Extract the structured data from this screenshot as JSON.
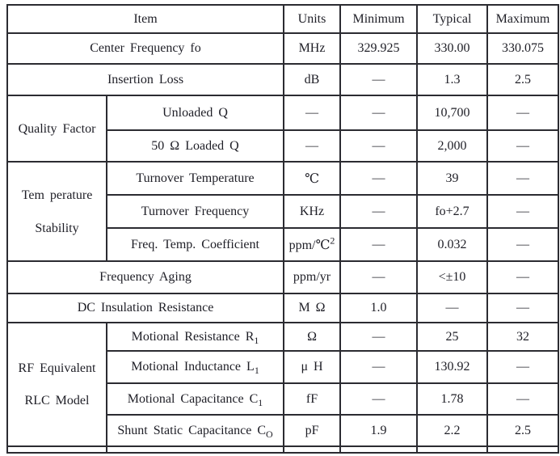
{
  "colors": {
    "background": "#ffffff",
    "text": "#1e1e26",
    "border": "#2b2b31"
  },
  "header": {
    "item": "Item",
    "units": "Units",
    "minimum": "Minimum",
    "typical": "Typical",
    "maximum": "Maximum"
  },
  "rows": [
    {
      "item": "Center Frequency fo",
      "units": "MHz",
      "min": "329.925",
      "typ": "330.00",
      "max": "330.075"
    },
    {
      "item": "Insertion Loss",
      "units": "dB",
      "min": "—",
      "typ": "1.3",
      "max": "2.5"
    },
    {
      "group": "Quality Factor",
      "item": "Unloaded Q",
      "units": "—",
      "min": "—",
      "typ": "10,700",
      "max": "—"
    },
    {
      "item": "50 Ω Loaded Q",
      "units": "—",
      "min": "—",
      "typ": "2,000",
      "max": "—"
    },
    {
      "group_line1": "Tem perature",
      "group_line2": "Stability",
      "item": "Turnover Temperature",
      "units": "℃",
      "min": "—",
      "typ": "39",
      "max": "—"
    },
    {
      "item": "Turnover Frequency",
      "units": "KHz",
      "min": "—",
      "typ": "fo+2.7",
      "max": "—"
    },
    {
      "item": "Freq. Temp. Coefficient",
      "units_html": "ppm/℃<sup>2</sup>",
      "min": "—",
      "typ": "0.032",
      "max": "—"
    },
    {
      "item": "Frequency Aging",
      "units": "ppm/yr",
      "min": "—",
      "typ": "<±10",
      "max": "—"
    },
    {
      "item": "DC Insulation Resistance",
      "units": "M Ω",
      "min": "1.0",
      "typ": "—",
      "max": "—"
    },
    {
      "group_line1": "RF Equivalent",
      "group_line2": "RLC Model",
      "item_html": "Motional Resistance R<sub>1</sub>",
      "units": "Ω",
      "min": "—",
      "typ": "25",
      "max": "32"
    },
    {
      "item_html": "Motional Inductance L<sub>1</sub>",
      "units": "μ H",
      "min": "—",
      "typ": "130.92",
      "max": "—"
    },
    {
      "item_html": "Motional Capacitance C<sub>1</sub>",
      "units": "fF",
      "min": "—",
      "typ": "1.78",
      "max": "—"
    },
    {
      "item_html": "Shunt Static Capacitance C<sub>O</sub>",
      "units": "pF",
      "min": "1.9",
      "typ": "2.2",
      "max": "2.5"
    }
  ]
}
